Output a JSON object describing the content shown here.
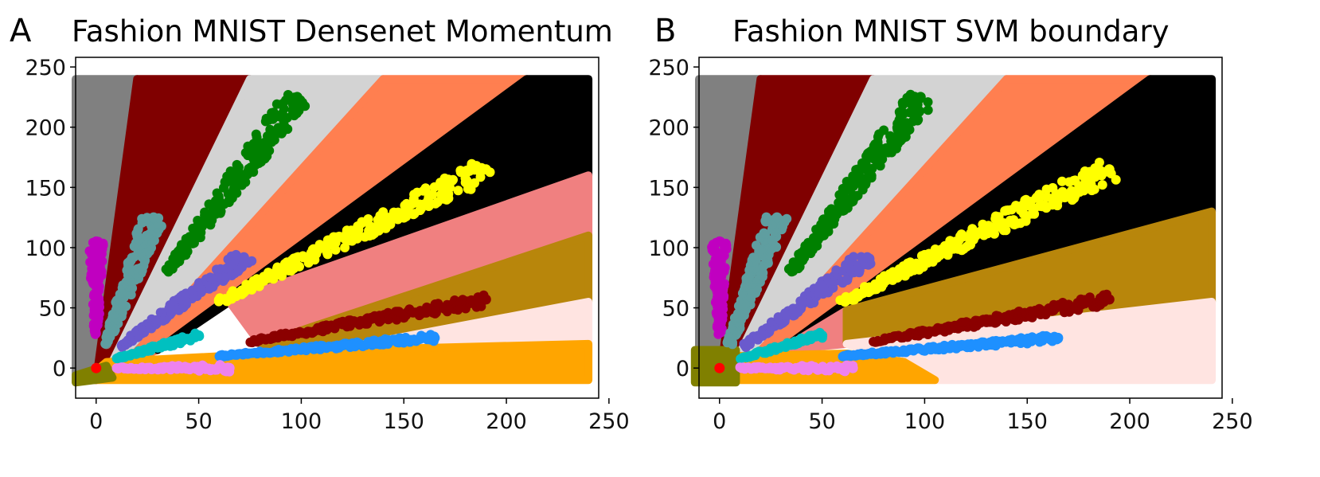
{
  "figure": {
    "panels": [
      {
        "letter": "A",
        "title": "Fashion MNIST Densenet Momentum"
      },
      {
        "letter": "B",
        "title": "Fashion MNIST SVM boundary"
      }
    ]
  },
  "chart_data": [
    {
      "type": "scatter",
      "title": "Fashion MNIST Densenet Momentum",
      "xlabel": "",
      "ylabel": "",
      "xlim": [
        -10,
        245
      ],
      "ylim": [
        -25,
        258
      ],
      "xticks": [
        0,
        50,
        100,
        150,
        200,
        250
      ],
      "yticks": [
        0,
        50,
        100,
        150,
        200,
        250
      ],
      "grid": false,
      "regions": [
        {
          "color": "#808080",
          "polygon": [
            [
              -10,
              -10
            ],
            [
              0,
              -10
            ],
            [
              20,
              240
            ],
            [
              -10,
              240
            ]
          ]
        },
        {
          "color": "#800000",
          "polygon": [
            [
              0,
              -10
            ],
            [
              5,
              -5
            ],
            [
              75,
              240
            ],
            [
              20,
              240
            ]
          ]
        },
        {
          "color": "#d3d3d3",
          "polygon": [
            [
              5,
              -5
            ],
            [
              15,
              5
            ],
            [
              140,
              240
            ],
            [
              75,
              240
            ]
          ]
        },
        {
          "color": "#ff7f50",
          "polygon": [
            [
              15,
              5
            ],
            [
              30,
              15
            ],
            [
              210,
              240
            ],
            [
              140,
              240
            ]
          ]
        },
        {
          "color": "#000000",
          "polygon": [
            [
              30,
              15
            ],
            [
              65,
              55
            ],
            [
              240,
              160
            ],
            [
              240,
              240
            ],
            [
              210,
              240
            ]
          ]
        },
        {
          "color": "#f08080",
          "polygon": [
            [
              65,
              55
            ],
            [
              80,
              20
            ],
            [
              240,
              110
            ],
            [
              240,
              160
            ]
          ]
        },
        {
          "color": "#b8860b",
          "polygon": [
            [
              80,
              20
            ],
            [
              100,
              10
            ],
            [
              240,
              55
            ],
            [
              240,
              110
            ]
          ]
        },
        {
          "color": "#ffe4e1",
          "polygon": [
            [
              100,
              10
            ],
            [
              120,
              15
            ],
            [
              240,
              10
            ],
            [
              240,
              55
            ]
          ]
        },
        {
          "color": "#ffa500",
          "polygon": [
            [
              -5,
              -10
            ],
            [
              240,
              -10
            ],
            [
              240,
              20
            ],
            [
              120,
              15
            ],
            [
              5,
              5
            ]
          ]
        },
        {
          "color": "#808000",
          "polygon": [
            [
              -10,
              -12
            ],
            [
              8,
              -8
            ],
            [
              5,
              2
            ],
            [
              -10,
              -6
            ]
          ]
        }
      ],
      "clusters": [
        {
          "color": "#808080",
          "from": [
            5,
            20
          ],
          "to": [
            5,
            20
          ],
          "width": 0
        },
        {
          "color": "#c000c0",
          "from": [
            0,
            28
          ],
          "to": [
            0,
            105
          ],
          "width": 4
        },
        {
          "color": "#5f9ea0",
          "from": [
            5,
            20
          ],
          "to": [
            28,
            125
          ],
          "width": 6
        },
        {
          "color": "#008000",
          "from": [
            35,
            80
          ],
          "to": [
            98,
            225
          ],
          "width": 8
        },
        {
          "color": "#6a5acd",
          "from": [
            12,
            18
          ],
          "to": [
            72,
            92
          ],
          "width": 6
        },
        {
          "color": "#00c0c0",
          "from": [
            10,
            8
          ],
          "to": [
            50,
            27
          ],
          "width": 3
        },
        {
          "color": "#ffff00",
          "from": [
            60,
            55
          ],
          "to": [
            190,
            165
          ],
          "width": 9
        },
        {
          "color": "#8b0000",
          "from": [
            75,
            22
          ],
          "to": [
            190,
            57
          ],
          "width": 5
        },
        {
          "color": "#1e90ff",
          "from": [
            60,
            10
          ],
          "to": [
            165,
            25
          ],
          "width": 3
        },
        {
          "color": "#ee82ee",
          "from": [
            10,
            0
          ],
          "to": [
            65,
            0
          ],
          "width": 3
        },
        {
          "color": "#ff0000",
          "from": [
            0,
            0
          ],
          "to": [
            0,
            0
          ],
          "width": 1
        }
      ]
    },
    {
      "type": "scatter",
      "title": "Fashion MNIST SVM boundary",
      "xlabel": "",
      "ylabel": "",
      "xlim": [
        -10,
        245
      ],
      "ylim": [
        -25,
        258
      ],
      "xticks": [
        0,
        50,
        100,
        150,
        200,
        250
      ],
      "yticks": [
        0,
        50,
        100,
        150,
        200,
        250
      ],
      "grid": false,
      "regions": [
        {
          "color": "#808080",
          "polygon": [
            [
              -10,
              -10
            ],
            [
              0,
              -10
            ],
            [
              20,
              240
            ],
            [
              -10,
              240
            ]
          ]
        },
        {
          "color": "#800000",
          "polygon": [
            [
              0,
              -10
            ],
            [
              5,
              -5
            ],
            [
              75,
              240
            ],
            [
              20,
              240
            ]
          ]
        },
        {
          "color": "#d3d3d3",
          "polygon": [
            [
              5,
              -5
            ],
            [
              15,
              5
            ],
            [
              140,
              240
            ],
            [
              75,
              240
            ]
          ]
        },
        {
          "color": "#ff7f50",
          "polygon": [
            [
              15,
              5
            ],
            [
              30,
              15
            ],
            [
              210,
              240
            ],
            [
              140,
              240
            ]
          ]
        },
        {
          "color": "#000000",
          "polygon": [
            [
              30,
              15
            ],
            [
              62,
              48
            ],
            [
              240,
              130
            ],
            [
              240,
              240
            ],
            [
              210,
              240
            ]
          ]
        },
        {
          "color": "#f08080",
          "polygon": [
            [
              30,
              15
            ],
            [
              62,
              48
            ],
            [
              62,
              20
            ]
          ]
        },
        {
          "color": "#b8860b",
          "polygon": [
            [
              62,
              20
            ],
            [
              240,
              55
            ],
            [
              240,
              130
            ],
            [
              62,
              48
            ]
          ]
        },
        {
          "color": "#ffe4e1",
          "polygon": [
            [
              105,
              -10
            ],
            [
              240,
              -10
            ],
            [
              240,
              55
            ],
            [
              62,
              20
            ],
            [
              90,
              5
            ]
          ]
        },
        {
          "color": "#ffa500",
          "polygon": [
            [
              8,
              -10
            ],
            [
              105,
              -10
            ],
            [
              90,
              5
            ],
            [
              62,
              12
            ],
            [
              8,
              10
            ]
          ]
        },
        {
          "color": "#808000",
          "polygon": [
            [
              -12,
              -12
            ],
            [
              8,
              -12
            ],
            [
              8,
              15
            ],
            [
              -12,
              15
            ]
          ]
        }
      ],
      "clusters": [
        {
          "color": "#c000c0",
          "from": [
            0,
            28
          ],
          "to": [
            0,
            105
          ],
          "width": 4
        },
        {
          "color": "#5f9ea0",
          "from": [
            5,
            20
          ],
          "to": [
            28,
            125
          ],
          "width": 6
        },
        {
          "color": "#008000",
          "from": [
            35,
            80
          ],
          "to": [
            98,
            225
          ],
          "width": 8
        },
        {
          "color": "#6a5acd",
          "from": [
            12,
            18
          ],
          "to": [
            72,
            92
          ],
          "width": 6
        },
        {
          "color": "#00c0c0",
          "from": [
            10,
            8
          ],
          "to": [
            50,
            27
          ],
          "width": 3
        },
        {
          "color": "#ffff00",
          "from": [
            60,
            55
          ],
          "to": [
            190,
            165
          ],
          "width": 9
        },
        {
          "color": "#8b0000",
          "from": [
            75,
            22
          ],
          "to": [
            190,
            57
          ],
          "width": 5
        },
        {
          "color": "#1e90ff",
          "from": [
            60,
            10
          ],
          "to": [
            165,
            25
          ],
          "width": 3
        },
        {
          "color": "#ee82ee",
          "from": [
            10,
            0
          ],
          "to": [
            65,
            0
          ],
          "width": 3
        },
        {
          "color": "#ff0000",
          "from": [
            0,
            0
          ],
          "to": [
            0,
            0
          ],
          "width": 1
        }
      ]
    }
  ]
}
